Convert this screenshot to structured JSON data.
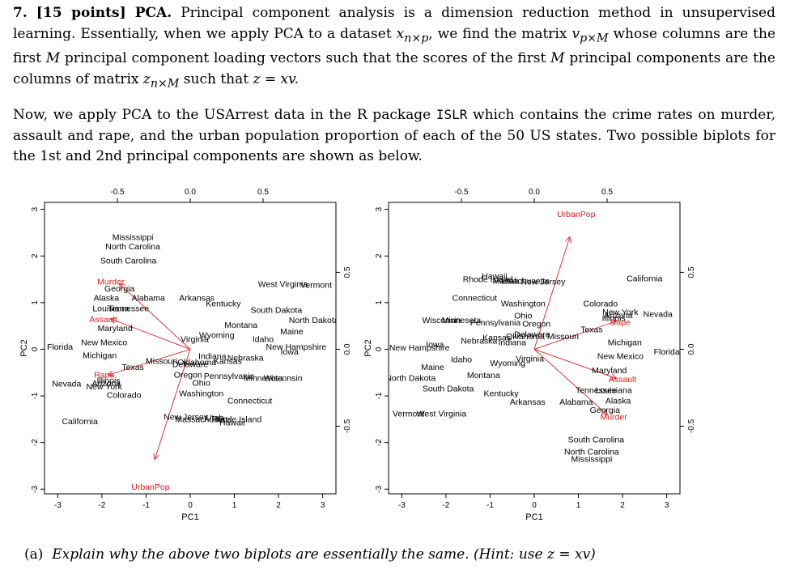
{
  "problem": {
    "number": "7.",
    "points": "[15 points]",
    "title": "PCA.",
    "p1_a": "Principal component analysis is a dimension reduction method in unsupervised learning. Essentially, when we apply PCA to a dataset",
    "p1_x": "x",
    "p1_xsub": "n×p",
    "p1_b": ", we find the matrix",
    "p1_v": "v",
    "p1_vsub": "p×M",
    "p1_c": "whose columns are the first",
    "p1_M1": "M",
    "p1_d": "principal component loading vectors such that the scores of the first",
    "p1_M2": "M",
    "p1_e": "principal components are the columns of matrix",
    "p1_z": "z",
    "p1_zsub": "n×M",
    "p1_f": "such that",
    "p1_eq": "z = xv.",
    "p2_a": "Now, we apply PCA to the USArrest data in the R package",
    "p2_pkg": "ISLR",
    "p2_b": "which contains the crime rates on murder, assault and rape, and the urban population proportion of each of the 50 US states. Two possible biplots for the 1st and 2nd principal components are shown as below."
  },
  "question": {
    "label": "(a)",
    "text": "Explain why the above two biplots are essentially the same. (Hint: use",
    "eq": "z = xv)"
  },
  "colors": {
    "arrow": "#e0201c",
    "text": "#000000"
  },
  "chart_data": [
    {
      "type": "scatter",
      "name": "biplot-left",
      "xlabel": "PC1",
      "ylabel": "PC2",
      "xlim": [
        -3.3,
        3.3
      ],
      "ylim": [
        -3.1,
        3.15
      ],
      "xticks": [
        "-3",
        "-2",
        "-1",
        "0",
        "1",
        "2",
        "3"
      ],
      "yticks": [
        "-3",
        "-2",
        "-1",
        "0",
        "1",
        "2",
        "3"
      ],
      "top_ticks": [
        "-0.5",
        "0.0",
        "0.5"
      ],
      "right_ticks": [
        "-0.5",
        "0.0",
        "0.5"
      ],
      "points": [
        {
          "label": "Mississippi",
          "x": -1.3,
          "y": 2.4
        },
        {
          "label": "North Carolina",
          "x": -1.3,
          "y": 2.2
        },
        {
          "label": "South Carolina",
          "x": -1.4,
          "y": 1.9
        },
        {
          "label": "Georgia",
          "x": -1.6,
          "y": 1.3
        },
        {
          "label": "Alaska",
          "x": -1.9,
          "y": 1.1
        },
        {
          "label": "Alabama",
          "x": -0.95,
          "y": 1.1
        },
        {
          "label": "Arkansas",
          "x": 0.15,
          "y": 1.1
        },
        {
          "label": "Kentucky",
          "x": 0.75,
          "y": 0.98
        },
        {
          "label": "West Virginia",
          "x": 2.1,
          "y": 1.4
        },
        {
          "label": "Vermont",
          "x": 2.85,
          "y": 1.38
        },
        {
          "label": "Louisiana",
          "x": -1.8,
          "y": 0.88
        },
        {
          "label": "Tennessee",
          "x": -1.4,
          "y": 0.88
        },
        {
          "label": "South Dakota",
          "x": 1.95,
          "y": 0.84
        },
        {
          "label": "North Dakota",
          "x": 2.8,
          "y": 0.62
        },
        {
          "label": "Maryland",
          "x": -1.7,
          "y": 0.45
        },
        {
          "label": "Montana",
          "x": 1.15,
          "y": 0.52
        },
        {
          "label": "Maine",
          "x": 2.3,
          "y": 0.38
        },
        {
          "label": "Wyoming",
          "x": 0.6,
          "y": 0.3
        },
        {
          "label": "Virginia",
          "x": 0.1,
          "y": 0.22
        },
        {
          "label": "Idaho",
          "x": 1.65,
          "y": 0.22
        },
        {
          "label": "New Mexico",
          "x": -1.95,
          "y": 0.15
        },
        {
          "label": "Florida",
          "x": -2.95,
          "y": 0.05
        },
        {
          "label": "New Hampshire",
          "x": 2.4,
          "y": 0.05
        },
        {
          "label": "Iowa",
          "x": 2.25,
          "y": -0.05
        },
        {
          "label": "Michigan",
          "x": -2.05,
          "y": -0.13
        },
        {
          "label": "Indiana",
          "x": 0.5,
          "y": -0.15
        },
        {
          "label": "Nebraska",
          "x": 1.25,
          "y": -0.18
        },
        {
          "label": "Missouri",
          "x": -0.65,
          "y": -0.25
        },
        {
          "label": "Oklahoma",
          "x": 0.15,
          "y": -0.28
        },
        {
          "label": "Kansas",
          "x": 0.85,
          "y": -0.25
        },
        {
          "label": "Delaware",
          "x": 0.0,
          "y": -0.32
        },
        {
          "label": "Texas",
          "x": -1.3,
          "y": -0.38
        },
        {
          "label": "Oregon",
          "x": -0.05,
          "y": -0.55
        },
        {
          "label": "Pennsylvania",
          "x": 0.88,
          "y": -0.57
        },
        {
          "label": "Minnesota",
          "x": 1.65,
          "y": -0.62
        },
        {
          "label": "Wisconsin",
          "x": 2.1,
          "y": -0.62
        },
        {
          "label": "Illinois",
          "x": -1.85,
          "y": -0.67
        },
        {
          "label": "Arizona",
          "x": -1.9,
          "y": -0.73
        },
        {
          "label": "Nevada",
          "x": -2.8,
          "y": -0.74
        },
        {
          "label": "New York",
          "x": -1.95,
          "y": -0.8
        },
        {
          "label": "Ohio",
          "x": 0.25,
          "y": -0.72
        },
        {
          "label": "Colorado",
          "x": -1.5,
          "y": -0.98
        },
        {
          "label": "Washington",
          "x": 0.25,
          "y": -0.95
        },
        {
          "label": "Connecticut",
          "x": 1.35,
          "y": -1.1
        },
        {
          "label": "New Jersey",
          "x": -0.1,
          "y": -1.45
        },
        {
          "label": "Massachusetts",
          "x": 0.3,
          "y": -1.5
        },
        {
          "label": "Utah",
          "x": 0.55,
          "y": -1.47
        },
        {
          "label": "Rhode Island",
          "x": 1.05,
          "y": -1.5
        },
        {
          "label": "Hawaii",
          "x": 0.95,
          "y": -1.57
        },
        {
          "label": "California",
          "x": -2.5,
          "y": -1.55
        }
      ],
      "loadings": [
        {
          "label": "Murder",
          "x": -1.6,
          "y": 1.4
        },
        {
          "label": "Assault",
          "x": -1.8,
          "y": 0.65
        },
        {
          "label": "Rape",
          "x": -1.85,
          "y": -0.55
        },
        {
          "label": "UrbanPop",
          "x": -0.8,
          "y": -2.35
        }
      ],
      "loading_labels": [
        {
          "label": "Murder",
          "x": -1.8,
          "y": 1.45
        },
        {
          "label": "Assault",
          "x": -1.97,
          "y": 0.64
        },
        {
          "label": "Rape",
          "x": -1.95,
          "y": -0.55
        },
        {
          "label": "UrbanPop",
          "x": -0.9,
          "y": -2.95
        }
      ]
    },
    {
      "type": "scatter",
      "name": "biplot-right",
      "xlabel": "PC1",
      "ylabel": "PC2",
      "xlim": [
        -3.3,
        3.3
      ],
      "ylim": [
        -3.1,
        3.15
      ],
      "xticks": [
        "-3",
        "-2",
        "-1",
        "0",
        "1",
        "2",
        "3"
      ],
      "yticks": [
        "-3",
        "-2",
        "-1",
        "0",
        "1",
        "2",
        "3"
      ],
      "top_ticks": [
        "-0.5",
        "0.0",
        "0.5"
      ],
      "right_ticks": [
        "-0.5",
        "0.0",
        "0.5"
      ],
      "points": [
        {
          "label": "Rhode Island",
          "x": -1.05,
          "y": 1.5
        },
        {
          "label": "Hawaii",
          "x": -0.9,
          "y": 1.57
        },
        {
          "label": "Massachusetts",
          "x": -0.3,
          "y": 1.47
        },
        {
          "label": "Utah",
          "x": -0.55,
          "y": 1.47
        },
        {
          "label": "New Jersey",
          "x": 0.2,
          "y": 1.45
        },
        {
          "label": "California",
          "x": 2.5,
          "y": 1.52
        },
        {
          "label": "Connecticut",
          "x": -1.35,
          "y": 1.1
        },
        {
          "label": "Washington",
          "x": -0.25,
          "y": 0.98
        },
        {
          "label": "Colorado",
          "x": 1.5,
          "y": 0.98
        },
        {
          "label": "Ohio",
          "x": -0.25,
          "y": 0.72
        },
        {
          "label": "New York",
          "x": 1.95,
          "y": 0.8
        },
        {
          "label": "Arizona",
          "x": 1.9,
          "y": 0.73
        },
        {
          "label": "Nevada",
          "x": 2.8,
          "y": 0.75
        },
        {
          "label": "Illinois",
          "x": 1.8,
          "y": 0.67
        },
        {
          "label": "Wisconsin",
          "x": -2.1,
          "y": 0.62
        },
        {
          "label": "Minnesota",
          "x": -1.65,
          "y": 0.62
        },
        {
          "label": "Pennsylvania",
          "x": -0.88,
          "y": 0.57
        },
        {
          "label": "Oregon",
          "x": 0.05,
          "y": 0.55
        },
        {
          "label": "Texas",
          "x": 1.3,
          "y": 0.42
        },
        {
          "label": "Kansas",
          "x": -0.85,
          "y": 0.25
        },
        {
          "label": "Oklahoma",
          "x": -0.2,
          "y": 0.28
        },
        {
          "label": "Delaware",
          "x": -0.05,
          "y": 0.32
        },
        {
          "label": "Missouri",
          "x": 0.65,
          "y": 0.28
        },
        {
          "label": "Nebraska",
          "x": -1.25,
          "y": 0.18
        },
        {
          "label": "Indiana",
          "x": -0.5,
          "y": 0.15
        },
        {
          "label": "Michigan",
          "x": 2.05,
          "y": 0.15
        },
        {
          "label": "Iowa",
          "x": -2.25,
          "y": 0.1
        },
        {
          "label": "New Hampshire",
          "x": -2.6,
          "y": 0.03
        },
        {
          "label": "Florida",
          "x": 3.0,
          "y": -0.05
        },
        {
          "label": "New Mexico",
          "x": 1.95,
          "y": -0.15
        },
        {
          "label": "Virginia",
          "x": -0.1,
          "y": -0.2
        },
        {
          "label": "Idaho",
          "x": -1.65,
          "y": -0.22
        },
        {
          "label": "Wyoming",
          "x": -0.6,
          "y": -0.3
        },
        {
          "label": "Maryland",
          "x": 1.7,
          "y": -0.45
        },
        {
          "label": "Maine",
          "x": -2.3,
          "y": -0.38
        },
        {
          "label": "Montana",
          "x": -1.15,
          "y": -0.56
        },
        {
          "label": "North Dakota",
          "x": -2.8,
          "y": -0.62
        },
        {
          "label": "South Dakota",
          "x": -1.95,
          "y": -0.84
        },
        {
          "label": "Kentucky",
          "x": -0.75,
          "y": -0.95
        },
        {
          "label": "Tennessee",
          "x": 1.4,
          "y": -0.88
        },
        {
          "label": "Louisiana",
          "x": 1.8,
          "y": -0.88
        },
        {
          "label": "Arkansas",
          "x": -0.15,
          "y": -1.13
        },
        {
          "label": "Alabama",
          "x": 0.95,
          "y": -1.13
        },
        {
          "label": "Alaska",
          "x": 1.9,
          "y": -1.1
        },
        {
          "label": "Georgia",
          "x": 1.6,
          "y": -1.3
        },
        {
          "label": "Vermont",
          "x": -2.85,
          "y": -1.38
        },
        {
          "label": "West Virginia",
          "x": -2.1,
          "y": -1.38
        },
        {
          "label": "South Carolina",
          "x": 1.4,
          "y": -1.94
        },
        {
          "label": "North Carolina",
          "x": 1.3,
          "y": -2.2
        },
        {
          "label": "Mississippi",
          "x": 1.3,
          "y": -2.35
        }
      ],
      "loadings": [
        {
          "label": "UrbanPop",
          "x": 0.8,
          "y": 2.4
        },
        {
          "label": "Rape",
          "x": 1.85,
          "y": 0.6
        },
        {
          "label": "Assault",
          "x": 1.85,
          "y": -0.62
        },
        {
          "label": "Murder",
          "x": 1.65,
          "y": -1.4
        }
      ],
      "loading_labels": [
        {
          "label": "UrbanPop",
          "x": 0.95,
          "y": 2.9
        },
        {
          "label": "Rape",
          "x": 1.95,
          "y": 0.58
        },
        {
          "label": "Assault",
          "x": 2.0,
          "y": -0.64
        },
        {
          "label": "Murder",
          "x": 1.8,
          "y": -1.45
        }
      ]
    }
  ]
}
